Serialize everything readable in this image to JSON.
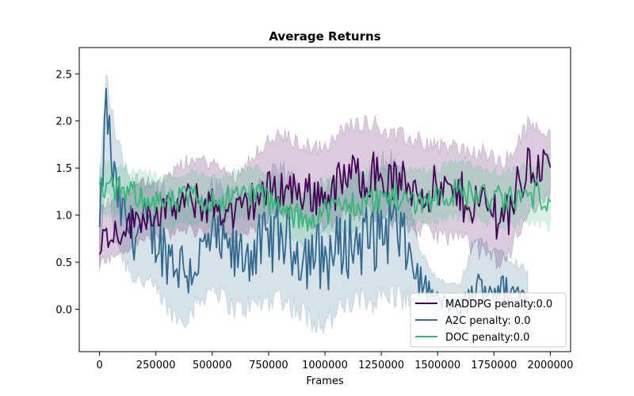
{
  "chart_data": {
    "type": "line",
    "title": "Average Returns",
    "xlabel": "Frames",
    "ylabel": "",
    "xlim": [
      -90000,
      2090000
    ],
    "ylim": [
      -0.45,
      2.78
    ],
    "xticks": [
      0,
      250000,
      500000,
      750000,
      1000000,
      1250000,
      1500000,
      1750000,
      2000000
    ],
    "xtick_labels": [
      "0",
      "250000",
      "500000",
      "750000",
      "1000000",
      "1250000",
      "1500000",
      "1750000",
      "2000000"
    ],
    "yticks": [
      0.0,
      0.5,
      1.0,
      1.5,
      2.0,
      2.5
    ],
    "ytick_labels": [
      "0.0",
      "0.5",
      "1.0",
      "1.5",
      "2.0",
      "2.5"
    ],
    "grid": false,
    "legend": "lower-right",
    "series": [
      {
        "name": "MADDPG penalty:0.0",
        "color": "#440154",
        "x": [
          0,
          100000,
          200000,
          300000,
          400000,
          500000,
          600000,
          700000,
          800000,
          900000,
          1000000,
          1100000,
          1200000,
          1300000,
          1400000,
          1500000,
          1600000,
          1700000,
          1800000,
          1900000,
          2000000
        ],
        "y": [
          0.75,
          0.85,
          1.0,
          1.05,
          1.15,
          1.1,
          1.0,
          1.2,
          1.3,
          1.25,
          1.2,
          1.4,
          1.45,
          1.35,
          1.3,
          1.25,
          1.2,
          1.1,
          1.0,
          1.5,
          1.55
        ],
        "band_lo": [
          0.5,
          0.6,
          0.75,
          0.8,
          0.85,
          0.8,
          0.75,
          0.9,
          1.0,
          0.95,
          0.9,
          1.0,
          1.05,
          0.95,
          0.85,
          0.8,
          0.75,
          0.6,
          0.5,
          1.05,
          1.2
        ],
        "band_hi": [
          1.1,
          1.2,
          1.35,
          1.4,
          1.6,
          1.55,
          1.4,
          1.7,
          1.85,
          1.75,
          1.7,
          1.95,
          2.0,
          1.85,
          1.8,
          1.75,
          1.7,
          1.65,
          1.55,
          1.95,
          1.9
        ]
      },
      {
        "name": "A2C penalty: 0.0",
        "color": "#31688e",
        "x": [
          0,
          30000,
          60000,
          100000,
          150000,
          200000,
          250000,
          300000,
          350000,
          400000,
          500000,
          600000,
          700000,
          800000,
          900000,
          1000000,
          1100000,
          1200000,
          1300000,
          1370000,
          1420000,
          1500000,
          1600000,
          1650000,
          1700000,
          1800000,
          1900000
        ],
        "y": [
          0.8,
          2.2,
          1.4,
          1.0,
          0.8,
          0.85,
          0.75,
          0.6,
          0.5,
          0.4,
          0.75,
          0.55,
          0.65,
          0.8,
          0.6,
          0.55,
          0.7,
          0.75,
          0.9,
          0.6,
          0.3,
          0.1,
          0.0,
          0.15,
          0.25,
          0.2,
          0.15
        ],
        "band_lo": [
          0.45,
          1.4,
          0.9,
          0.55,
          0.35,
          0.3,
          0.2,
          0.0,
          -0.1,
          -0.05,
          0.25,
          0.0,
          0.05,
          0.15,
          -0.05,
          -0.15,
          0.05,
          0.1,
          0.15,
          0.1,
          0.0,
          -0.05,
          -0.1,
          -0.05,
          0.0,
          0.0,
          -0.05
        ],
        "band_hi": [
          1.3,
          2.5,
          2.0,
          1.6,
          1.35,
          1.4,
          1.3,
          1.2,
          1.15,
          1.05,
          1.3,
          1.2,
          1.3,
          1.45,
          1.3,
          1.25,
          1.4,
          1.5,
          1.6,
          1.25,
          0.6,
          0.3,
          0.25,
          0.65,
          0.7,
          0.6,
          0.4
        ]
      },
      {
        "name": "DOC penalty:0.0",
        "color": "#35b779",
        "x": [
          0,
          100000,
          200000,
          300000,
          400000,
          500000,
          600000,
          700000,
          800000,
          900000,
          1000000,
          1100000,
          1200000,
          1300000,
          1400000,
          1500000,
          1600000,
          1700000,
          1800000,
          1900000,
          2000000
        ],
        "y": [
          1.3,
          1.25,
          1.2,
          1.1,
          1.2,
          1.15,
          1.2,
          1.25,
          1.05,
          0.95,
          1.05,
          1.1,
          1.15,
          1.2,
          1.15,
          1.2,
          1.25,
          1.2,
          1.15,
          1.2,
          1.25
        ],
        "band_lo": [
          1.05,
          1.0,
          0.95,
          0.85,
          0.95,
          0.9,
          0.95,
          1.0,
          0.8,
          0.7,
          0.8,
          0.85,
          0.9,
          0.95,
          0.9,
          0.95,
          1.0,
          0.95,
          0.9,
          0.95,
          0.85
        ],
        "band_hi": [
          1.55,
          1.5,
          1.45,
          1.4,
          1.45,
          1.4,
          1.45,
          1.5,
          1.35,
          1.25,
          1.35,
          1.4,
          1.45,
          1.5,
          1.45,
          1.5,
          1.55,
          1.5,
          1.45,
          1.5,
          1.6
        ]
      }
    ]
  }
}
